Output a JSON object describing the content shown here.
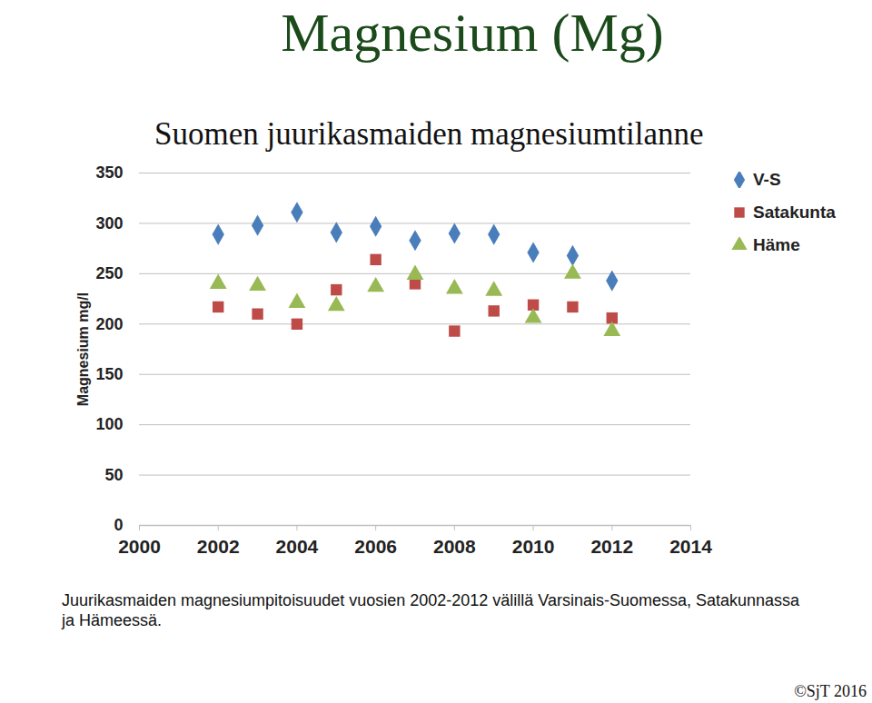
{
  "chart_data": {
    "type": "scatter",
    "title": "Magnesium (Mg)",
    "subtitle": "Suomen juurikasmaiden magnesiumtilanne",
    "y_label": "Magnesium mg/l",
    "caption": "Juurikasmaiden magnesiumpitoisuudet vuosien 2002-2012 välillä Varsinais-Suomessa, Satakunnassa ja Hämeessä.",
    "annotations": [
      "©SjT 2016"
    ],
    "x": [
      2002,
      2003,
      2004,
      2005,
      2006,
      2007,
      2008,
      2009,
      2010,
      2011,
      2012
    ],
    "series": [
      {
        "name": "V-S",
        "color": "#4a7ebb",
        "marker": "diamond",
        "values": [
          289,
          298,
          311,
          291,
          297,
          283,
          290,
          289,
          271,
          268,
          243
        ]
      },
      {
        "name": "Satakunta",
        "color": "#be4b48",
        "marker": "square",
        "values": [
          217,
          210,
          200,
          234,
          264,
          240,
          193,
          213,
          219,
          217,
          206
        ]
      },
      {
        "name": "Häme",
        "color": "#98b954",
        "marker": "triangle",
        "values": [
          240,
          238,
          221,
          218,
          237,
          249,
          235,
          233,
          206,
          250,
          193
        ]
      }
    ],
    "xlim": [
      2000,
      2014
    ],
    "xticks": [
      2000,
      2002,
      2004,
      2006,
      2008,
      2010,
      2012,
      2014
    ],
    "ylim": [
      0,
      350
    ],
    "yticks": [
      0,
      50,
      100,
      150,
      200,
      250,
      300,
      350
    ],
    "grid": true,
    "legend": "right"
  }
}
